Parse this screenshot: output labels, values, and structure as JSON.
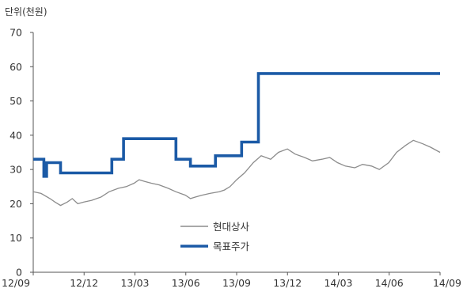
{
  "chart_data": {
    "type": "line",
    "unit_label": "단위(천원)",
    "ylim": [
      0,
      70
    ],
    "y_ticks": [
      0,
      10,
      20,
      30,
      40,
      50,
      60,
      70
    ],
    "x_tick_labels": [
      "12/09",
      "12/12",
      "13/03",
      "13/06",
      "13/09",
      "13/12",
      "14/03",
      "14/06",
      "14/09"
    ],
    "x_domain": [
      "2012-09-01",
      "2014-09-01"
    ],
    "grid": false,
    "legend_position": "center",
    "series": [
      {
        "name": "현대상사",
        "color": "#8c8c8c",
        "style": "thin",
        "points": [
          [
            "2012-09-01",
            23.5
          ],
          [
            "2012-09-15",
            23.0
          ],
          [
            "2012-10-01",
            21.5
          ],
          [
            "2012-10-10",
            20.5
          ],
          [
            "2012-10-20",
            19.5
          ],
          [
            "2012-11-01",
            20.5
          ],
          [
            "2012-11-10",
            21.5
          ],
          [
            "2012-11-20",
            20.0
          ],
          [
            "2012-12-01",
            20.5
          ],
          [
            "2012-12-15",
            21.0
          ],
          [
            "2013-01-01",
            22.0
          ],
          [
            "2013-01-15",
            23.5
          ],
          [
            "2013-02-01",
            24.5
          ],
          [
            "2013-02-15",
            25.0
          ],
          [
            "2013-03-01",
            26.0
          ],
          [
            "2013-03-10",
            27.0
          ],
          [
            "2013-03-20",
            26.5
          ],
          [
            "2013-04-01",
            26.0
          ],
          [
            "2013-04-15",
            25.5
          ],
          [
            "2013-05-01",
            24.5
          ],
          [
            "2013-05-15",
            23.5
          ],
          [
            "2013-06-01",
            22.5
          ],
          [
            "2013-06-10",
            21.5
          ],
          [
            "2013-06-20",
            22.0
          ],
          [
            "2013-07-01",
            22.5
          ],
          [
            "2013-07-15",
            23.0
          ],
          [
            "2013-08-01",
            23.5
          ],
          [
            "2013-08-10",
            24.0
          ],
          [
            "2013-08-20",
            25.0
          ],
          [
            "2013-09-01",
            27.0
          ],
          [
            "2013-09-15",
            29.0
          ],
          [
            "2013-10-01",
            32.0
          ],
          [
            "2013-10-15",
            34.0
          ],
          [
            "2013-11-01",
            33.0
          ],
          [
            "2013-11-15",
            35.0
          ],
          [
            "2013-12-01",
            36.0
          ],
          [
            "2013-12-15",
            34.5
          ],
          [
            "2014-01-01",
            33.5
          ],
          [
            "2014-01-15",
            32.5
          ],
          [
            "2014-02-01",
            33.0
          ],
          [
            "2014-02-15",
            33.5
          ],
          [
            "2014-03-01",
            32.0
          ],
          [
            "2014-03-15",
            31.0
          ],
          [
            "2014-04-01",
            30.5
          ],
          [
            "2014-04-15",
            31.5
          ],
          [
            "2014-05-01",
            31.0
          ],
          [
            "2014-05-15",
            30.0
          ],
          [
            "2014-06-01",
            32.0
          ],
          [
            "2014-06-15",
            35.0
          ],
          [
            "2014-07-01",
            37.0
          ],
          [
            "2014-07-15",
            38.5
          ],
          [
            "2014-08-01",
            37.5
          ],
          [
            "2014-08-15",
            36.5
          ],
          [
            "2014-09-01",
            35.0
          ]
        ]
      },
      {
        "name": "목표주가",
        "color": "#1b5aa6",
        "style": "thick-step",
        "points": [
          [
            "2012-09-01",
            33
          ],
          [
            "2012-09-20",
            28
          ],
          [
            "2012-09-25",
            32
          ],
          [
            "2012-10-20",
            29
          ],
          [
            "2013-01-20",
            33
          ],
          [
            "2013-02-10",
            39
          ],
          [
            "2013-05-15",
            33
          ],
          [
            "2013-06-10",
            31
          ],
          [
            "2013-07-25",
            34
          ],
          [
            "2013-09-10",
            38
          ],
          [
            "2013-10-10",
            58
          ],
          [
            "2014-09-01",
            58
          ]
        ]
      }
    ]
  }
}
